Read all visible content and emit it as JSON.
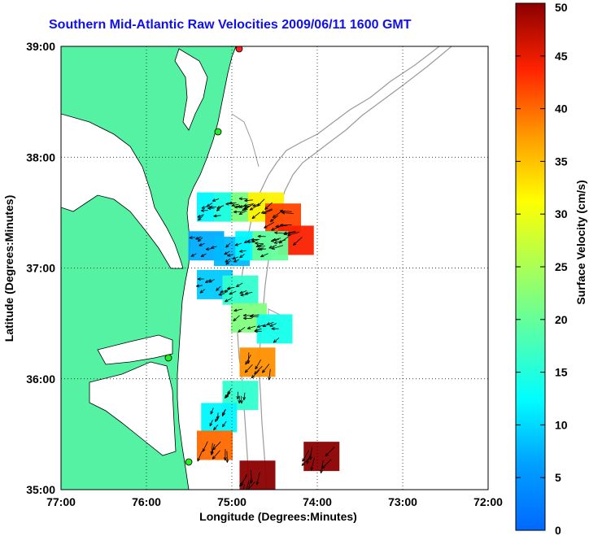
{
  "chart_data": {
    "type": "heatmap",
    "title": "Southern Mid-Atlantic Raw Velocities 2009/06/11 1600 GMT",
    "xlabel": "Longitude (Degrees:Minutes)",
    "ylabel": "Latitude (Degrees:Minutes)",
    "xlim": [
      -77,
      -72
    ],
    "ylim": [
      35,
      39
    ],
    "x_ticks": [
      {
        "value": -77,
        "label": "77:00"
      },
      {
        "value": -76,
        "label": "76:00"
      },
      {
        "value": -75,
        "label": "75:00"
      },
      {
        "value": -74,
        "label": "74:00"
      },
      {
        "value": -73,
        "label": "73:00"
      },
      {
        "value": -72,
        "label": "72:00"
      }
    ],
    "y_ticks": [
      {
        "value": 35,
        "label": "35:00"
      },
      {
        "value": 36,
        "label": "36:00"
      },
      {
        "value": 37,
        "label": "37:00"
      },
      {
        "value": 38,
        "label": "38:00"
      },
      {
        "value": 39,
        "label": "39:00"
      }
    ],
    "grid": true,
    "grid_style": "dotted",
    "land_color": "#55f2a4",
    "colorbar": {
      "label": "Surface Velocity (cm/s)",
      "range": [
        0,
        50
      ],
      "ticks": [
        "0",
        "5",
        "10",
        "15",
        "20",
        "25",
        "30",
        "35",
        "40",
        "45",
        "50"
      ],
      "colormap": "jet"
    },
    "cells": [
      {
        "lon": -75.2,
        "lat": 37.55,
        "speed": 12
      },
      {
        "lon": -75.0,
        "lat": 37.55,
        "speed": 15
      },
      {
        "lon": -74.8,
        "lat": 37.55,
        "speed": 22
      },
      {
        "lon": -74.6,
        "lat": 37.55,
        "speed": 32
      },
      {
        "lon": -74.4,
        "lat": 37.45,
        "speed": 42
      },
      {
        "lon": -74.25,
        "lat": 37.25,
        "speed": 44
      },
      {
        "lon": -75.3,
        "lat": 37.2,
        "speed": 7
      },
      {
        "lon": -75.0,
        "lat": 37.15,
        "speed": 8
      },
      {
        "lon": -74.75,
        "lat": 37.2,
        "speed": 12
      },
      {
        "lon": -74.55,
        "lat": 37.2,
        "speed": 20
      },
      {
        "lon": -75.2,
        "lat": 36.85,
        "speed": 9
      },
      {
        "lon": -74.9,
        "lat": 36.8,
        "speed": 16
      },
      {
        "lon": -74.8,
        "lat": 36.55,
        "speed": 22
      },
      {
        "lon": -74.5,
        "lat": 36.45,
        "speed": 14
      },
      {
        "lon": -74.7,
        "lat": 36.15,
        "speed": 38
      },
      {
        "lon": -74.9,
        "lat": 35.85,
        "speed": 16
      },
      {
        "lon": -75.15,
        "lat": 35.65,
        "speed": 12
      },
      {
        "lon": -75.2,
        "lat": 35.4,
        "speed": 40
      },
      {
        "lon": -74.7,
        "lat": 35.13,
        "speed": 50
      },
      {
        "lon": -73.95,
        "lat": 35.3,
        "speed": 50
      }
    ]
  }
}
